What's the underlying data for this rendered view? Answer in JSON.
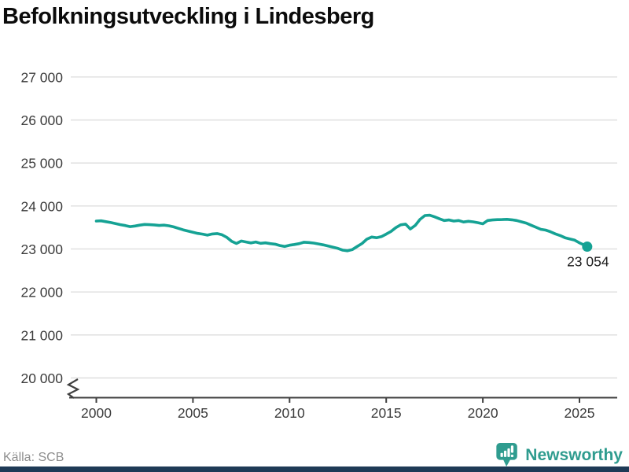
{
  "title": "Befolkningsutveckling i Lindesberg",
  "source": "Källa: SCB",
  "branding": {
    "name": "Newsworthy",
    "icon": "newsworthy-bubble-chart-icon",
    "accent_color": "#2f9c8f",
    "footer_bar_color": "#1e3a56"
  },
  "chart_data": {
    "type": "line",
    "title": "Befolkningsutveckling i Lindesberg",
    "series_name": "Befolkning i Lindesberg",
    "xlabel": "",
    "ylabel": "",
    "line_color": "#15a294",
    "grid": true,
    "ylim": [
      20000,
      27000
    ],
    "y_axis_break": true,
    "x_range": [
      2000,
      2025.4
    ],
    "end_value": 23054,
    "end_label": "23 054",
    "yticks": [
      {
        "value": 27000,
        "label": "27 000"
      },
      {
        "value": 26000,
        "label": "26 000"
      },
      {
        "value": 25000,
        "label": "25 000"
      },
      {
        "value": 24000,
        "label": "24 000"
      },
      {
        "value": 23000,
        "label": "23 000"
      },
      {
        "value": 22000,
        "label": "22 000"
      },
      {
        "value": 21000,
        "label": "21 000"
      },
      {
        "value": 20000,
        "label": "20 000"
      }
    ],
    "xticks": [
      {
        "value": 2000,
        "label": "2000"
      },
      {
        "value": 2005,
        "label": "2005"
      },
      {
        "value": 2010,
        "label": "2010"
      },
      {
        "value": 2015,
        "label": "2015"
      },
      {
        "value": 2020,
        "label": "2020"
      },
      {
        "value": 2025,
        "label": "2025"
      }
    ],
    "points": [
      [
        2000,
        23650
      ],
      [
        2000.25,
        23655
      ],
      [
        2000.5,
        23635
      ],
      [
        2000.75,
        23615
      ],
      [
        2001,
        23590
      ],
      [
        2001.25,
        23565
      ],
      [
        2001.5,
        23545
      ],
      [
        2001.75,
        23520
      ],
      [
        2002,
        23535
      ],
      [
        2002.25,
        23555
      ],
      [
        2002.5,
        23570
      ],
      [
        2002.75,
        23565
      ],
      [
        2003,
        23560
      ],
      [
        2003.25,
        23548
      ],
      [
        2003.5,
        23555
      ],
      [
        2003.75,
        23540
      ],
      [
        2004,
        23515
      ],
      [
        2004.25,
        23480
      ],
      [
        2004.5,
        23445
      ],
      [
        2004.75,
        23415
      ],
      [
        2005,
        23390
      ],
      [
        2005.25,
        23362
      ],
      [
        2005.5,
        23345
      ],
      [
        2005.75,
        23322
      ],
      [
        2006,
        23350
      ],
      [
        2006.25,
        23358
      ],
      [
        2006.5,
        23332
      ],
      [
        2006.75,
        23270
      ],
      [
        2007,
        23180
      ],
      [
        2007.25,
        23128
      ],
      [
        2007.5,
        23185
      ],
      [
        2007.75,
        23162
      ],
      [
        2008,
        23140
      ],
      [
        2008.25,
        23162
      ],
      [
        2008.5,
        23132
      ],
      [
        2008.75,
        23142
      ],
      [
        2009,
        23125
      ],
      [
        2009.25,
        23112
      ],
      [
        2009.5,
        23080
      ],
      [
        2009.75,
        23058
      ],
      [
        2010,
        23088
      ],
      [
        2010.25,
        23105
      ],
      [
        2010.5,
        23125
      ],
      [
        2010.75,
        23158
      ],
      [
        2011,
        23150
      ],
      [
        2011.25,
        23138
      ],
      [
        2011.5,
        23118
      ],
      [
        2011.75,
        23095
      ],
      [
        2012,
        23068
      ],
      [
        2012.25,
        23040
      ],
      [
        2012.5,
        23012
      ],
      [
        2012.75,
        22972
      ],
      [
        2013,
        22958
      ],
      [
        2013.25,
        22988
      ],
      [
        2013.5,
        23058
      ],
      [
        2013.75,
        23128
      ],
      [
        2014,
        23228
      ],
      [
        2014.25,
        23278
      ],
      [
        2014.5,
        23262
      ],
      [
        2014.75,
        23288
      ],
      [
        2015,
        23345
      ],
      [
        2015.25,
        23408
      ],
      [
        2015.5,
        23498
      ],
      [
        2015.75,
        23562
      ],
      [
        2016,
        23578
      ],
      [
        2016.25,
        23465
      ],
      [
        2016.5,
        23548
      ],
      [
        2016.75,
        23688
      ],
      [
        2017,
        23778
      ],
      [
        2017.25,
        23785
      ],
      [
        2017.5,
        23748
      ],
      [
        2017.75,
        23702
      ],
      [
        2018,
        23662
      ],
      [
        2018.25,
        23676
      ],
      [
        2018.5,
        23650
      ],
      [
        2018.75,
        23662
      ],
      [
        2019,
        23628
      ],
      [
        2019.25,
        23645
      ],
      [
        2019.5,
        23632
      ],
      [
        2019.75,
        23612
      ],
      [
        2020,
        23585
      ],
      [
        2020.25,
        23662
      ],
      [
        2020.5,
        23675
      ],
      [
        2020.75,
        23682
      ],
      [
        2021,
        23685
      ],
      [
        2021.25,
        23690
      ],
      [
        2021.5,
        23678
      ],
      [
        2021.75,
        23662
      ],
      [
        2022,
        23632
      ],
      [
        2022.25,
        23602
      ],
      [
        2022.5,
        23552
      ],
      [
        2022.75,
        23505
      ],
      [
        2023,
        23458
      ],
      [
        2023.25,
        23440
      ],
      [
        2023.5,
        23400
      ],
      [
        2023.75,
        23352
      ],
      [
        2024,
        23312
      ],
      [
        2024.25,
        23262
      ],
      [
        2024.5,
        23235
      ],
      [
        2024.75,
        23205
      ],
      [
        2025,
        23142
      ],
      [
        2025.25,
        23092
      ],
      [
        2025.4,
        23054
      ]
    ]
  }
}
